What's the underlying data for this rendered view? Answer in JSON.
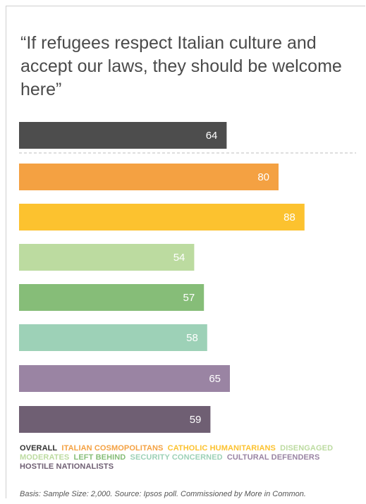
{
  "chart_data": {
    "type": "bar",
    "orientation": "horizontal",
    "title": "“If refugees respect Italian culture and accept our laws, they should be welcome here”",
    "categories": [
      "OVERALL",
      "ITALIAN COSMOPOLITANS",
      "CATHOLIC HUMANITARIANS",
      "DISENGAGED MODERATES",
      "LEFT BEHIND",
      "SECURITY CONCERNED",
      "CULTURAL DEFENDERS",
      "HOSTILE NATIONALISTS"
    ],
    "values": [
      64,
      80,
      88,
      54,
      57,
      58,
      65,
      59
    ],
    "colors": [
      "#4d4d4d",
      "#f4a142",
      "#fcc22f",
      "#bcdba0",
      "#86bd78",
      "#9dd1b7",
      "#9a84a3",
      "#6f5f73"
    ],
    "legend_colors": [
      "#333333",
      "#f4a142",
      "#fcc22f",
      "#bcdba0",
      "#86bd78",
      "#9dd1b7",
      "#9a84a3",
      "#6f5f73"
    ],
    "xlim": [
      0,
      100
    ],
    "grid": false,
    "legend_position": "bottom",
    "value_labels": "inside-end",
    "separator_after_first": true,
    "footnote": "Basis: Sample Size: 2,000. Source: Ipsos poll. Commissioned by More in Common."
  }
}
